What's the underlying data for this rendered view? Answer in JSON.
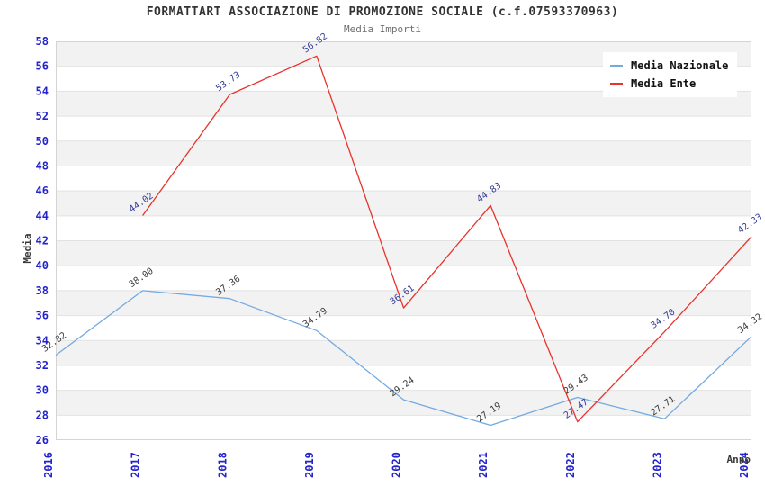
{
  "page": {
    "title": "FORMATTART ASSOCIAZIONE DI PROMOZIONE SOCIALE (c.f.07593370963)",
    "subtitle": "Media Importi"
  },
  "axes": {
    "y_title": "Media",
    "x_title": "Anno"
  },
  "legend": {
    "items": [
      {
        "label": "Media Nazionale",
        "color": "#74aae2"
      },
      {
        "label": "Media Ente",
        "color": "#e8322b"
      }
    ]
  },
  "chart_data": {
    "type": "line",
    "title": "FORMATTART ASSOCIAZIONE DI PROMOZIONE SOCIALE (c.f.07593370963)",
    "subtitle": "Media Importi",
    "xlabel": "Anno",
    "ylabel": "Media",
    "x": [
      2016,
      2017,
      2018,
      2019,
      2020,
      2021,
      2022,
      2023,
      2024
    ],
    "series": [
      {
        "name": "Media Nazionale",
        "color": "#74aae2",
        "label_color": "#3a3a3a",
        "values": [
          32.82,
          38.0,
          37.36,
          34.79,
          29.24,
          27.19,
          29.43,
          27.71,
          34.32
        ]
      },
      {
        "name": "Media Ente",
        "color": "#e8322b",
        "label_color": "#343b99",
        "values": [
          null,
          44.02,
          53.73,
          56.82,
          36.61,
          44.83,
          27.47,
          34.7,
          42.33
        ]
      }
    ],
    "ylim": [
      26,
      58
    ],
    "y_step": 2,
    "grid": "horizontal-bands-alternating",
    "legend_position": "top-right",
    "colors": {
      "band_gray": "#f2f2f2",
      "gridline": "#e2e2e2",
      "plot_border": "#d4d4d4",
      "tick_label": "#2424cc"
    }
  }
}
